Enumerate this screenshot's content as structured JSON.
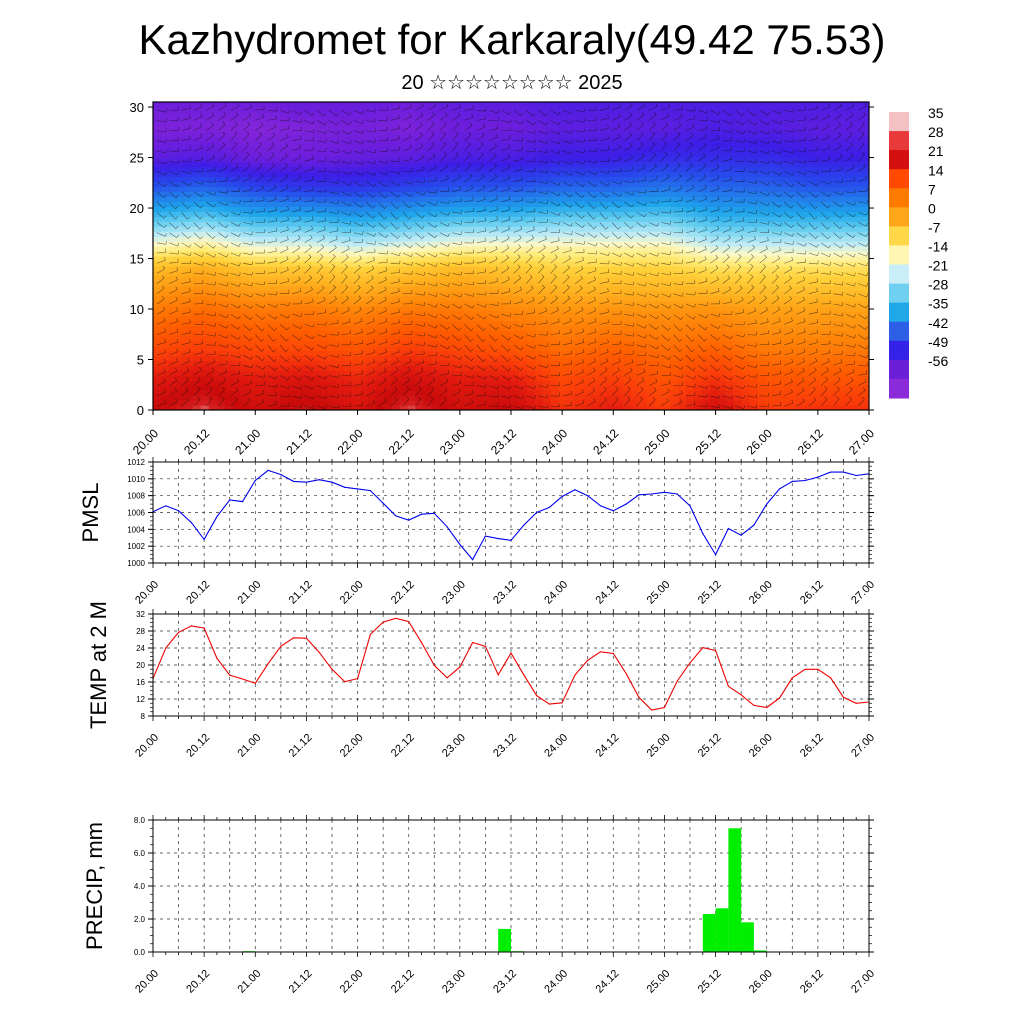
{
  "title": "Kazhydromet for Karkaraly(49.42 75.53)",
  "subtitle": "20 ☆☆☆☆☆☆☆☆ 2025",
  "time_ticks": [
    "20.00",
    "20.12",
    "21.00",
    "21.12",
    "22.00",
    "22.12",
    "23.00",
    "23.12",
    "24.00",
    "24.12",
    "25.00",
    "25.12",
    "26.00",
    "26.12",
    "27.00"
  ],
  "chart_data": [
    {
      "type": "heatmap",
      "name": "vertical temperature and wind cross-section",
      "yticks": [
        0,
        5,
        10,
        15,
        20,
        25,
        30
      ],
      "ylim": [
        0,
        30.5
      ],
      "xlim": [
        20.0,
        27.0
      ],
      "colorbar": {
        "labels": [
          "35",
          "28",
          "21",
          "14",
          "7",
          "0",
          "-7",
          "-14",
          "-21",
          "-28",
          "-35",
          "-42",
          "-49",
          "-56"
        ],
        "colors": [
          "#f4c2c4",
          "#e83a3a",
          "#d40f0f",
          "#ff4a00",
          "#ff7a00",
          "#ffa51a",
          "#ffd84a",
          "#fff6b4",
          "#c9eef8",
          "#6fd0f2",
          "#1fa7e8",
          "#2c5fe6",
          "#3422e8",
          "#6b20d8",
          "#8a2ad8"
        ]
      },
      "temperature_field": {
        "levels": [
          0,
          3,
          6,
          10,
          14,
          16,
          19,
          22,
          25,
          28,
          30.5
        ],
        "columns": [
          {
            "x": 20.0,
            "t": [
              28,
              22,
              14,
              6,
              -4,
              -14,
              -28,
              -42,
              -54,
              -58,
              -56
            ]
          },
          {
            "x": 20.5,
            "t": [
              34,
              26,
              16,
              8,
              -2,
              -12,
              -26,
              -40,
              -53,
              -58,
              -56
            ]
          },
          {
            "x": 21.0,
            "t": [
              26,
              22,
              14,
              6,
              -6,
              -16,
              -30,
              -44,
              -56,
              -59,
              -56
            ]
          },
          {
            "x": 21.5,
            "t": [
              30,
              24,
              14,
              6,
              -6,
              -16,
              -30,
              -46,
              -56,
              -58,
              -55
            ]
          },
          {
            "x": 22.0,
            "t": [
              24,
              20,
              12,
              4,
              -8,
              -18,
              -32,
              -46,
              -55,
              -57,
              -55
            ]
          },
          {
            "x": 22.5,
            "t": [
              34,
              26,
              16,
              6,
              -6,
              -16,
              -30,
              -44,
              -54,
              -58,
              -56
            ]
          },
          {
            "x": 23.0,
            "t": [
              26,
              22,
              14,
              6,
              -4,
              -14,
              -28,
              -42,
              -52,
              -56,
              -54
            ]
          },
          {
            "x": 23.5,
            "t": [
              28,
              22,
              12,
              4,
              -6,
              -14,
              -28,
              -42,
              -52,
              -56,
              -54
            ]
          },
          {
            "x": 24.0,
            "t": [
              18,
              14,
              8,
              2,
              -8,
              -14,
              -26,
              -40,
              -50,
              -54,
              -52
            ]
          },
          {
            "x": 24.5,
            "t": [
              22,
              16,
              10,
              2,
              -8,
              -14,
              -26,
              -40,
              -50,
              -54,
              -52
            ]
          },
          {
            "x": 25.0,
            "t": [
              16,
              12,
              8,
              2,
              -8,
              -14,
              -26,
              -38,
              -48,
              -54,
              -52
            ]
          },
          {
            "x": 25.5,
            "t": [
              26,
              18,
              10,
              2,
              -10,
              -18,
              -30,
              -40,
              -48,
              -52,
              -52
            ]
          },
          {
            "x": 26.0,
            "t": [
              16,
              12,
              6,
              0,
              -10,
              -18,
              -30,
              -40,
              -48,
              -53,
              -52
            ]
          },
          {
            "x": 26.5,
            "t": [
              18,
              12,
              6,
              0,
              -10,
              -18,
              -30,
              -42,
              -50,
              -54,
              -52
            ]
          },
          {
            "x": 27.0,
            "t": [
              18,
              12,
              6,
              0,
              -10,
              -18,
              -30,
              -42,
              -50,
              -54,
              -52
            ]
          }
        ]
      }
    },
    {
      "type": "line",
      "ylabel": "PMSL",
      "ylim": [
        1000,
        1012
      ],
      "yticks": [
        "1000",
        "1002",
        "1004",
        "1006",
        "1008",
        "1010",
        "1012"
      ],
      "color": "#0000ee",
      "x": [
        20.0,
        20.125,
        20.25,
        20.375,
        20.5,
        20.625,
        20.75,
        20.875,
        21.0,
        21.125,
        21.25,
        21.375,
        21.5,
        21.625,
        21.75,
        21.875,
        22.0,
        22.125,
        22.25,
        22.375,
        22.5,
        22.625,
        22.75,
        22.875,
        23.0,
        23.125,
        23.25,
        23.375,
        23.5,
        23.625,
        23.75,
        23.875,
        24.0,
        24.125,
        24.25,
        24.375,
        24.5,
        24.625,
        24.75,
        24.875,
        25.0,
        25.125,
        25.25,
        25.375,
        25.5,
        25.625,
        25.75,
        25.875,
        26.0,
        26.125,
        26.25,
        26.375,
        26.5,
        26.625,
        26.75,
        26.875,
        27.0
      ],
      "values": [
        1006.1,
        1006.8,
        1006.2,
        1004.8,
        1002.8,
        1005.5,
        1007.5,
        1007.3,
        1009.8,
        1011.0,
        1010.5,
        1009.7,
        1009.6,
        1009.9,
        1009.6,
        1009.0,
        1008.8,
        1008.6,
        1007.1,
        1005.6,
        1005.1,
        1005.8,
        1005.9,
        1004.3,
        1002.2,
        1000.4,
        1003.2,
        1002.9,
        1002.7,
        1004.5,
        1006.0,
        1006.6,
        1007.9,
        1008.7,
        1008.0,
        1006.8,
        1006.2,
        1007.0,
        1008.1,
        1008.2,
        1008.4,
        1008.2,
        1006.8,
        1003.5,
        1001.0,
        1004.1,
        1003.3,
        1004.5,
        1007.0,
        1008.8,
        1009.7,
        1009.8,
        1010.2,
        1010.8,
        1010.8,
        1010.4,
        1010.6
      ]
    },
    {
      "type": "line",
      "ylabel": "TEMP at 2 M",
      "ylim": [
        8,
        32
      ],
      "yticks": [
        "8",
        "12",
        "16",
        "20",
        "24",
        "28",
        "32"
      ],
      "color": "#ee0000",
      "x": [
        20.0,
        20.125,
        20.25,
        20.375,
        20.5,
        20.625,
        20.75,
        20.875,
        21.0,
        21.125,
        21.25,
        21.375,
        21.5,
        21.625,
        21.75,
        21.875,
        22.0,
        22.125,
        22.25,
        22.375,
        22.5,
        22.625,
        22.75,
        22.875,
        23.0,
        23.125,
        23.25,
        23.375,
        23.5,
        23.625,
        23.75,
        23.875,
        24.0,
        24.125,
        24.25,
        24.375,
        24.5,
        24.625,
        24.75,
        24.875,
        25.0,
        25.125,
        25.25,
        25.375,
        25.5,
        25.625,
        25.75,
        25.875,
        26.0,
        26.125,
        26.25,
        26.375,
        26.5,
        26.625,
        26.75,
        26.875,
        27.0
      ],
      "values": [
        16.8,
        24.0,
        27.7,
        29.2,
        28.7,
        21.6,
        17.6,
        16.7,
        15.7,
        20.3,
        24.4,
        26.4,
        26.3,
        23.0,
        19.0,
        16.1,
        16.8,
        27.2,
        30.1,
        31.0,
        30.2,
        25.3,
        19.9,
        17.0,
        19.5,
        25.3,
        24.4,
        17.7,
        22.8,
        17.7,
        12.8,
        10.8,
        11.1,
        17.6,
        21.1,
        23.1,
        22.7,
        18.0,
        12.4,
        9.4,
        10.0,
        16.2,
        20.5,
        24.1,
        23.4,
        15.0,
        13.0,
        10.5,
        10.0,
        12.2,
        17.0,
        19.0,
        19.0,
        17.0,
        12.4,
        11.0,
        11.3
      ]
    },
    {
      "type": "bar",
      "ylabel": "PRECIP, mm",
      "ylim": [
        0,
        8
      ],
      "yticks": [
        "0.0",
        "2.0",
        "4.0",
        "6.0",
        "8.0"
      ],
      "color": "#00ee00",
      "bar_width_days": 0.125,
      "x": [
        20.875,
        23.375,
        23.5,
        25.375,
        25.5,
        25.625,
        25.75,
        25.875
      ],
      "values": [
        0.05,
        1.4,
        0.05,
        2.3,
        2.65,
        7.5,
        1.8,
        0.1
      ]
    }
  ]
}
